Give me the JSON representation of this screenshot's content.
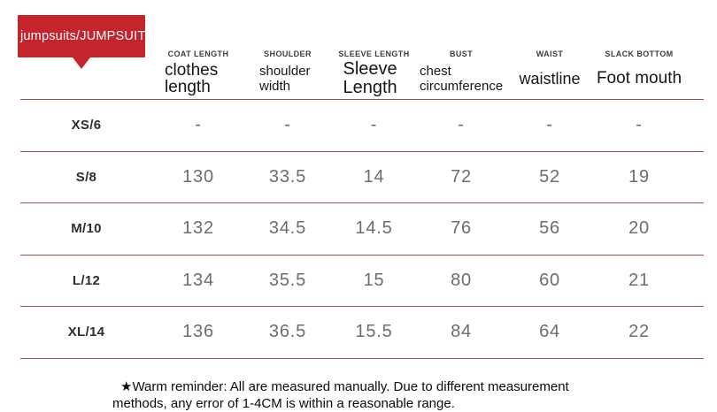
{
  "badge": {
    "label": "jumpsuits/JUMPSUIT"
  },
  "colors": {
    "badge_red": "#c4242c",
    "rule_line": "#9b564d",
    "value_gray": "#6a6d72"
  },
  "table": {
    "columns": [
      {
        "caps": "COAT LENGTH",
        "label": "clothes length"
      },
      {
        "caps": "SHOULDER",
        "label": "shoulder width"
      },
      {
        "caps": "SLEEVE LENGTH",
        "label": "Sleeve Length"
      },
      {
        "caps": "BUST",
        "label": "chest circumference"
      },
      {
        "caps": "WAIST",
        "label": "waistline"
      },
      {
        "caps": "SLACK BOTTOM",
        "label": "Foot mouth"
      }
    ],
    "rows": [
      {
        "size": "XS/6",
        "values": [
          "-",
          "-",
          "-",
          "-",
          "-",
          "-"
        ]
      },
      {
        "size": "S/8",
        "values": [
          "130",
          "33.5",
          "14",
          "72",
          "52",
          "19"
        ]
      },
      {
        "size": "M/10",
        "values": [
          "132",
          "34.5",
          "14.5",
          "76",
          "56",
          "20"
        ]
      },
      {
        "size": "L/12",
        "values": [
          "134",
          "35.5",
          "15",
          "80",
          "60",
          "21"
        ]
      },
      {
        "size": "XL/14",
        "values": [
          "136",
          "36.5",
          "15.5",
          "84",
          "64",
          "22"
        ]
      }
    ]
  },
  "footer": {
    "reminder": "★Warm reminder: All are measured manually. Due to different measurement methods, any error of 1-4CM is within a reasonable range."
  }
}
